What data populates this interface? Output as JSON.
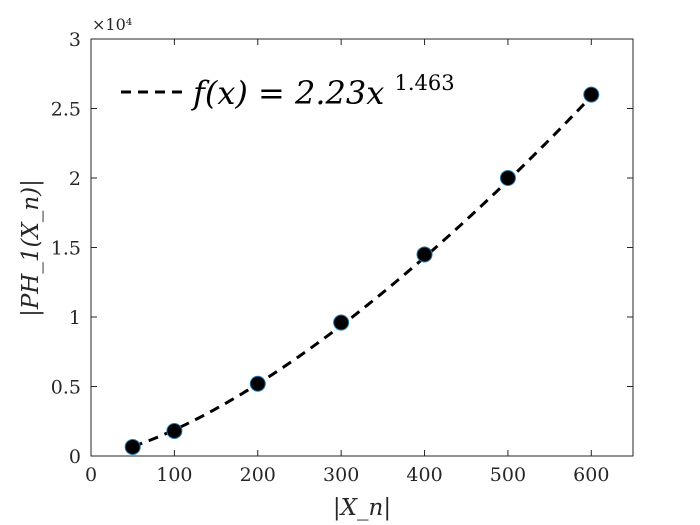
{
  "chart_data": {
    "type": "scatter",
    "xlabel": "|X_n|",
    "ylabel": "|PH_1(X_n)|",
    "xlim": [
      0,
      650
    ],
    "ylim": [
      0,
      30000
    ],
    "x_ticks": [
      0,
      100,
      200,
      300,
      400,
      500,
      600
    ],
    "x_tick_labels": [
      "0",
      "100",
      "200",
      "300",
      "400",
      "500",
      "600"
    ],
    "y_ticks": [
      0,
      5000,
      10000,
      15000,
      20000,
      25000,
      30000
    ],
    "y_tick_labels": [
      "0",
      "0.5",
      "1",
      "1.5",
      "2",
      "2.5",
      "3"
    ],
    "y_exponent_label": "×10⁴",
    "grid": false,
    "legend_position": "top-left",
    "series": [
      {
        "kind": "points",
        "x": [
          50,
          100,
          200,
          300,
          400,
          500,
          600
        ],
        "y": [
          650,
          1800,
          5200,
          9600,
          14500,
          20000,
          26000
        ]
      },
      {
        "kind": "fit-line",
        "name": "f(x) = 2.23x^1.463",
        "coefficient": 2.23,
        "exponent": 1.463,
        "x_range": [
          50,
          600
        ]
      }
    ],
    "legend": {
      "prefix": "f(x) = 2.23x",
      "exponent": "1.463"
    },
    "colors": {
      "marker_fill": "#000000",
      "marker_edge": "#1f77b4",
      "fit_line": "#000000",
      "axes": "#262626"
    }
  }
}
